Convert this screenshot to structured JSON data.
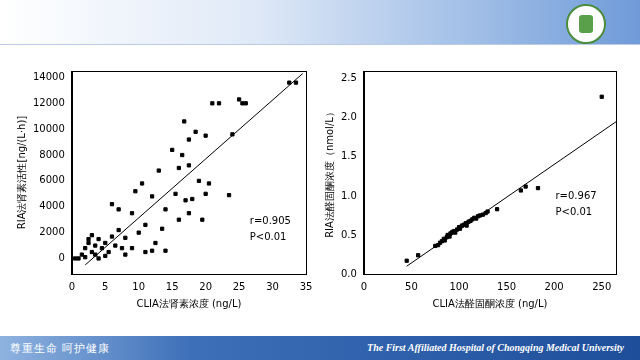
{
  "footer": {
    "left": "尊重生命 呵护健康",
    "right": "The First Affiliated Hospital of Chongqing Medical University"
  },
  "chart_data": [
    {
      "type": "scatter",
      "x_label": "CLIA法肾素浓度 (ng/L)",
      "y_label": "RIA法肾素活性[ng/(L·h)]",
      "xlim": [
        0,
        35
      ],
      "xticks": [
        0,
        5,
        10,
        15,
        20,
        25,
        30,
        35
      ],
      "ylim": [
        -1200,
        14500
      ],
      "yticks": [
        0,
        2000,
        4000,
        6000,
        8000,
        10000,
        12000,
        14000
      ],
      "grid": false,
      "annotations": [
        "r=0.905",
        "P<0.01"
      ],
      "series": [
        {
          "type": "scatter",
          "marker": "square",
          "color": "#000000",
          "values": [
            [
              0.5,
              0
            ],
            [
              1,
              0
            ],
            [
              1.5,
              300
            ],
            [
              2,
              100
            ],
            [
              2,
              800
            ],
            [
              2.5,
              1200
            ],
            [
              2.5,
              1500
            ],
            [
              3,
              500
            ],
            [
              3,
              1800
            ],
            [
              3.5,
              300
            ],
            [
              3.5,
              1000
            ],
            [
              4,
              0
            ],
            [
              4,
              1500
            ],
            [
              4.5,
              800
            ],
            [
              5,
              200
            ],
            [
              5,
              1200
            ],
            [
              5.5,
              500
            ],
            [
              6,
              1700
            ],
            [
              6,
              4200
            ],
            [
              6.5,
              1000
            ],
            [
              7,
              2200
            ],
            [
              7,
              3800
            ],
            [
              7.5,
              800
            ],
            [
              8,
              300
            ],
            [
              8,
              1600
            ],
            [
              9,
              800
            ],
            [
              9,
              3500
            ],
            [
              9.5,
              5200
            ],
            [
              10,
              2000
            ],
            [
              10.5,
              5800
            ],
            [
              11,
              500
            ],
            [
              11,
              2600
            ],
            [
              12,
              4800
            ],
            [
              12,
              600
            ],
            [
              12.5,
              1200
            ],
            [
              13,
              6800
            ],
            [
              13.5,
              2300
            ],
            [
              14,
              3800
            ],
            [
              14,
              600
            ],
            [
              15,
              8400
            ],
            [
              15.5,
              5000
            ],
            [
              16,
              3000
            ],
            [
              16,
              7000
            ],
            [
              16.5,
              8000
            ],
            [
              16.8,
              10600
            ],
            [
              17,
              4500
            ],
            [
              17.5,
              3500
            ],
            [
              17.5,
              7200
            ],
            [
              17.5,
              9200
            ],
            [
              18,
              4600
            ],
            [
              18.5,
              9800
            ],
            [
              19,
              6000
            ],
            [
              19.5,
              3000
            ],
            [
              20,
              9500
            ],
            [
              20,
              5000
            ],
            [
              20.5,
              5800
            ],
            [
              21,
              12000
            ],
            [
              22,
              12000
            ],
            [
              23.5,
              4900
            ],
            [
              24,
              9600
            ],
            [
              25,
              12300
            ],
            [
              25.5,
              12000
            ],
            [
              26,
              12000
            ],
            [
              32.5,
              13600
            ],
            [
              33.5,
              13600
            ]
          ]
        },
        {
          "type": "line",
          "marker": "none",
          "line_style": "solid",
          "color": "#000000",
          "values": [
            [
              2,
              -500
            ],
            [
              34.5,
              14300
            ]
          ]
        }
      ]
    },
    {
      "type": "scatter",
      "x_label": "CLIA法醛固酮浓度 (ng/L)",
      "y_label": "RIA法醛固酮浓度（nmol/L）",
      "xlim": [
        0,
        265
      ],
      "xticks": [
        0,
        50,
        100,
        150,
        200,
        250
      ],
      "ylim": [
        0,
        2.6
      ],
      "yticks": [
        {
          "value": 0,
          "label": "0.0"
        },
        0.5,
        {
          "value": 1,
          "label": "1.0"
        },
        1.5,
        {
          "value": 2,
          "label": "2.0"
        },
        2.5
      ],
      "grid": false,
      "annotations": [
        "r=0.967",
        "P<0.01"
      ],
      "series": [
        {
          "type": "scatter",
          "marker": "square",
          "color": "#000000",
          "values": [
            [
              45,
              0.17
            ],
            [
              57,
              0.24
            ],
            [
              75,
              0.36
            ],
            [
              78,
              0.37
            ],
            [
              80,
              0.4
            ],
            [
              82,
              0.42
            ],
            [
              84,
              0.45
            ],
            [
              85,
              0.43
            ],
            [
              87,
              0.47
            ],
            [
              88,
              0.5
            ],
            [
              90,
              0.48
            ],
            [
              91,
              0.52
            ],
            [
              93,
              0.54
            ],
            [
              95,
              0.55
            ],
            [
              96,
              0.53
            ],
            [
              98,
              0.57
            ],
            [
              100,
              0.6
            ],
            [
              101,
              0.58
            ],
            [
              103,
              0.62
            ],
            [
              105,
              0.63
            ],
            [
              107,
              0.65
            ],
            [
              108,
              0.62
            ],
            [
              110,
              0.67
            ],
            [
              112,
              0.68
            ],
            [
              114,
              0.7
            ],
            [
              116,
              0.72
            ],
            [
              118,
              0.71
            ],
            [
              120,
              0.74
            ],
            [
              122,
              0.75
            ],
            [
              125,
              0.76
            ],
            [
              128,
              0.78
            ],
            [
              130,
              0.8
            ],
            [
              140,
              0.83
            ],
            [
              165,
              1.07
            ],
            [
              170,
              1.12
            ],
            [
              183,
              1.1
            ],
            [
              250,
              2.27
            ]
          ]
        },
        {
          "type": "line",
          "marker": "none",
          "line_style": "solid",
          "color": "#000000",
          "values": [
            [
              45,
              0.1
            ],
            [
              265,
              1.95
            ]
          ]
        }
      ]
    }
  ]
}
